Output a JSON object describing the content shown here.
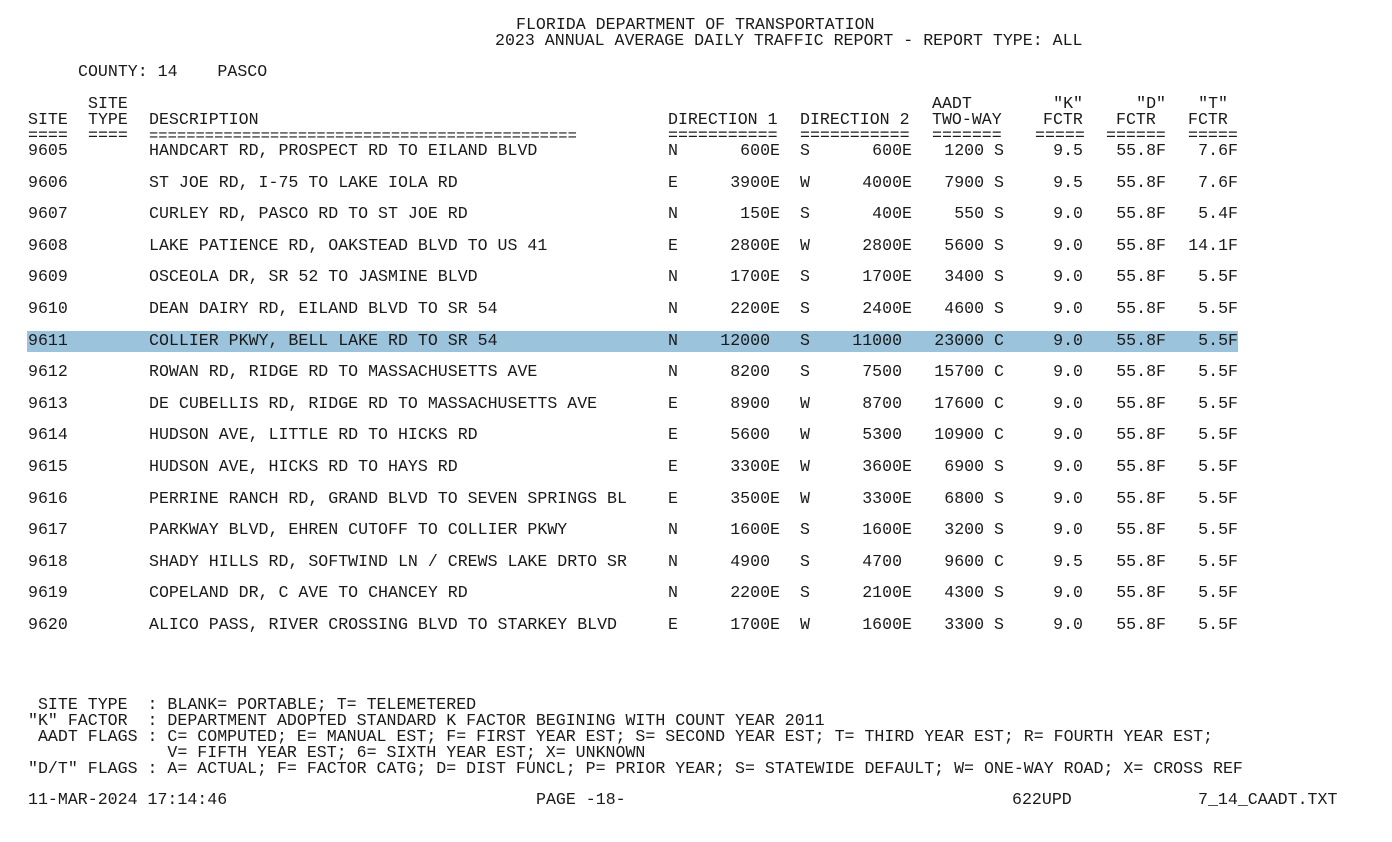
{
  "header": {
    "title_line1": "FLORIDA DEPARTMENT OF TRANSPORTATION",
    "title_line2": "2023 ANNUAL AVERAGE DAILY TRAFFIC REPORT - REPORT TYPE: ALL",
    "county_label": "COUNTY: 14    PASCO"
  },
  "columns": {
    "site": "SITE",
    "site_type_1": "SITE",
    "site_type_2": "TYPE",
    "description": "DESCRIPTION",
    "dir1": "DIRECTION 1",
    "dir2": "DIRECTION 2",
    "aadt_1": "AADT",
    "aadt_2": "TWO-WAY",
    "k_1": "\"K\"",
    "k_2": "FCTR",
    "d_1": "\"D\"",
    "d_2": "FCTR",
    "t_1": "\"T\"",
    "t_2": "FCTR",
    "rule_site": "====",
    "rule_type": "====",
    "rule_desc": "==============================================",
    "rule_dir1": "===========",
    "rule_dir2": "===========",
    "rule_aadt": "=======",
    "rule_k": "=====",
    "rule_d": "======",
    "rule_t": "====="
  },
  "highlight_color": "#9cc3dc",
  "highlighted_site": "9611",
  "rows": [
    {
      "site": "9605",
      "type": "",
      "desc": "HANDCART RD, PROSPECT RD TO EILAND BLVD",
      "d1": "N",
      "v1": "600E",
      "d2": "S",
      "v2": "600E",
      "aadt": "1200 S",
      "k": "9.5",
      "d": "55.8F",
      "t": "7.6F"
    },
    {
      "site": "9606",
      "type": "",
      "desc": "ST JOE RD, I-75 TO LAKE IOLA RD",
      "d1": "E",
      "v1": "3900E",
      "d2": "W",
      "v2": "4000E",
      "aadt": "7900 S",
      "k": "9.5",
      "d": "55.8F",
      "t": "7.6F"
    },
    {
      "site": "9607",
      "type": "",
      "desc": "CURLEY RD, PASCO RD TO ST JOE RD",
      "d1": "N",
      "v1": "150E",
      "d2": "S",
      "v2": "400E",
      "aadt": "550 S",
      "k": "9.0",
      "d": "55.8F",
      "t": "5.4F"
    },
    {
      "site": "9608",
      "type": "",
      "desc": "LAKE PATIENCE RD, OAKSTEAD BLVD TO US 41",
      "d1": "E",
      "v1": "2800E",
      "d2": "W",
      "v2": "2800E",
      "aadt": "5600 S",
      "k": "9.0",
      "d": "55.8F",
      "t": "14.1F"
    },
    {
      "site": "9609",
      "type": "",
      "desc": "OSCEOLA DR, SR 52 TO JASMINE BLVD",
      "d1": "N",
      "v1": "1700E",
      "d2": "S",
      "v2": "1700E",
      "aadt": "3400 S",
      "k": "9.0",
      "d": "55.8F",
      "t": "5.5F"
    },
    {
      "site": "9610",
      "type": "",
      "desc": "DEAN DAIRY RD, EILAND BLVD TO SR 54",
      "d1": "N",
      "v1": "2200E",
      "d2": "S",
      "v2": "2400E",
      "aadt": "4600 S",
      "k": "9.0",
      "d": "55.8F",
      "t": "5.5F"
    },
    {
      "site": "9611",
      "type": "",
      "desc": "COLLIER PKWY, BELL LAKE RD TO SR 54",
      "d1": "N",
      "v1": "12000 ",
      "d2": "S",
      "v2": "11000 ",
      "aadt": "23000 C",
      "k": "9.0",
      "d": "55.8F",
      "t": "5.5F"
    },
    {
      "site": "9612",
      "type": "",
      "desc": "ROWAN RD, RIDGE RD TO MASSACHUSETTS AVE",
      "d1": "N",
      "v1": "8200 ",
      "d2": "S",
      "v2": "7500 ",
      "aadt": "15700 C",
      "k": "9.0",
      "d": "55.8F",
      "t": "5.5F"
    },
    {
      "site": "9613",
      "type": "",
      "desc": "DE CUBELLIS RD, RIDGE RD TO MASSACHUSETTS AVE",
      "d1": "E",
      "v1": "8900 ",
      "d2": "W",
      "v2": "8700 ",
      "aadt": "17600 C",
      "k": "9.0",
      "d": "55.8F",
      "t": "5.5F"
    },
    {
      "site": "9614",
      "type": "",
      "desc": "HUDSON AVE, LITTLE RD TO HICKS RD",
      "d1": "E",
      "v1": "5600 ",
      "d2": "W",
      "v2": "5300 ",
      "aadt": "10900 C",
      "k": "9.0",
      "d": "55.8F",
      "t": "5.5F"
    },
    {
      "site": "9615",
      "type": "",
      "desc": "HUDSON AVE, HICKS RD TO HAYS RD",
      "d1": "E",
      "v1": "3300E",
      "d2": "W",
      "v2": "3600E",
      "aadt": "6900 S",
      "k": "9.0",
      "d": "55.8F",
      "t": "5.5F"
    },
    {
      "site": "9616",
      "type": "",
      "desc": "PERRINE RANCH RD, GRAND BLVD TO SEVEN SPRINGS BL",
      "d1": "E",
      "v1": "3500E",
      "d2": "W",
      "v2": "3300E",
      "aadt": "6800 S",
      "k": "9.0",
      "d": "55.8F",
      "t": "5.5F"
    },
    {
      "site": "9617",
      "type": "",
      "desc": "PARKWAY BLVD, EHREN CUTOFF TO COLLIER PKWY",
      "d1": "N",
      "v1": "1600E",
      "d2": "S",
      "v2": "1600E",
      "aadt": "3200 S",
      "k": "9.0",
      "d": "55.8F",
      "t": "5.5F"
    },
    {
      "site": "9618",
      "type": "",
      "desc": "SHADY HILLS RD, SOFTWIND LN / CREWS LAKE DRTO SR",
      "d1": "N",
      "v1": "4900 ",
      "d2": "S",
      "v2": "4700 ",
      "aadt": "9600 C",
      "k": "9.5",
      "d": "55.8F",
      "t": "5.5F"
    },
    {
      "site": "9619",
      "type": "",
      "desc": "COPELAND DR, C AVE TO CHANCEY RD",
      "d1": "N",
      "v1": "2200E",
      "d2": "S",
      "v2": "2100E",
      "aadt": "4300 S",
      "k": "9.0",
      "d": "55.8F",
      "t": "5.5F"
    },
    {
      "site": "9620",
      "type": "",
      "desc": "ALICO PASS, RIVER CROSSING BLVD TO STARKEY BLVD",
      "d1": "E",
      "v1": "1700E",
      "d2": "W",
      "v2": "1600E",
      "aadt": "3300 S",
      "k": "9.0",
      "d": "55.8F",
      "t": "5.5F"
    }
  ],
  "legend": [
    " SITE TYPE  : BLANK= PORTABLE; T= TELEMETERED",
    "\"K\" FACTOR  : DEPARTMENT ADOPTED STANDARD K FACTOR BEGINING WITH COUNT YEAR 2011",
    " AADT FLAGS : C= COMPUTED; E= MANUAL EST; F= FIRST YEAR EST; S= SECOND YEAR EST; T= THIRD YEAR EST; R= FOURTH YEAR EST;",
    "              V= FIFTH YEAR EST; 6= SIXTH YEAR EST; X= UNKNOWN",
    "\"D/T\" FLAGS : A= ACTUAL; F= FACTOR CATG; D= DIST FUNCL; P= PRIOR YEAR; S= STATEWIDE DEFAULT; W= ONE-WAY ROAD; X= CROSS REF"
  ],
  "footer": {
    "timestamp": "11-MAR-2024 17:14:46",
    "page": "PAGE -18-",
    "program": "622UPD",
    "filename": "7_14_CAADT.TXT"
  }
}
